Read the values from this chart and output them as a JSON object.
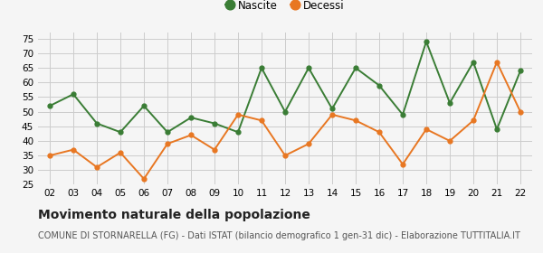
{
  "years": [
    "02",
    "03",
    "04",
    "05",
    "06",
    "07",
    "08",
    "09",
    "10",
    "11",
    "12",
    "13",
    "14",
    "15",
    "16",
    "17",
    "18",
    "19",
    "20",
    "21",
    "22"
  ],
  "nascite": [
    52,
    56,
    46,
    43,
    52,
    43,
    48,
    46,
    43,
    65,
    50,
    65,
    51,
    65,
    59,
    49,
    74,
    53,
    67,
    44,
    64
  ],
  "decessi": [
    35,
    37,
    31,
    36,
    27,
    39,
    42,
    37,
    49,
    47,
    35,
    39,
    49,
    47,
    43,
    32,
    44,
    40,
    47,
    67,
    50
  ],
  "nascite_color": "#3a7d35",
  "decessi_color": "#e87722",
  "bg_color": "#f5f5f5",
  "grid_color": "#cccccc",
  "ylim": [
    25,
    77
  ],
  "yticks": [
    25,
    30,
    35,
    40,
    45,
    50,
    55,
    60,
    65,
    70,
    75
  ],
  "title": "Movimento naturale della popolazione",
  "subtitle": "COMUNE DI STORNARELLA (FG) - Dati ISTAT (bilancio demografico 1 gen-31 dic) - Elaborazione TUTTITALIA.IT",
  "legend_nascite": "Nascite",
  "legend_decessi": "Decessi",
  "title_fontsize": 10,
  "subtitle_fontsize": 7
}
